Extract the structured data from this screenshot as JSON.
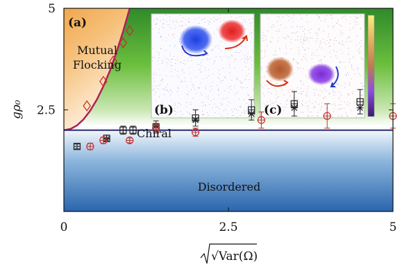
{
  "chart_data": {
    "type": "scatter",
    "xlabel": "√Var(Ω)",
    "ylabel": "gρ₀",
    "xlim": [
      0,
      5
    ],
    "ylim": [
      0,
      5
    ],
    "x_ticks": [
      "0",
      "2.5",
      "5"
    ],
    "y_ticks": [
      "2.5",
      "5"
    ],
    "panel_label": "(a)",
    "inset_labels": [
      "(b)",
      "(c)"
    ],
    "regions": [
      {
        "name": "Mutual Flocking",
        "lines": [
          "Mutual",
          "Flocking"
        ],
        "color": "#f09a1e"
      },
      {
        "name": "Chiral",
        "lines": [
          "Chiral"
        ],
        "color": "#3fa535"
      },
      {
        "name": "Disordered",
        "lines": [
          "Disordered"
        ],
        "color": "#2c6fb5"
      }
    ],
    "boundaries": {
      "horizontal_y": 2.0,
      "horizontal_color": "#2b2a6e",
      "curve": {
        "color": "#b0205a",
        "x": [
          0,
          0.1,
          0.2,
          0.3,
          0.4,
          0.5,
          0.6,
          0.7,
          0.8,
          0.9,
          1.0,
          1.1,
          1.2
        ],
        "y": [
          2.0,
          2.03,
          2.12,
          2.27,
          2.48,
          2.75,
          3.08,
          3.47,
          3.92,
          4.43,
          5.0,
          5.63,
          6.32
        ]
      }
    },
    "series": [
      {
        "name": "",
        "marker": "diamond",
        "color": "#c43030",
        "x": [
          0.35,
          0.6,
          0.75,
          0.9,
          1.0
        ],
        "y": [
          2.6,
          3.2,
          3.7,
          4.15,
          4.45
        ]
      },
      {
        "name": "",
        "marker": "square-plus",
        "color": "#222222",
        "x": [
          0.2,
          0.65,
          0.9,
          1.05,
          1.4,
          2.0,
          2.85,
          3.5,
          4.5
        ],
        "y": [
          1.6,
          1.8,
          2.0,
          2.0,
          2.08,
          2.3,
          2.5,
          2.65,
          2.7
        ],
        "err": [
          0.06,
          0.08,
          0.1,
          0.1,
          0.15,
          0.2,
          0.25,
          0.3,
          0.3
        ]
      },
      {
        "name": "",
        "marker": "star",
        "color": "#222222",
        "x": [
          0.65,
          1.4,
          2.0,
          2.85,
          3.5,
          4.5
        ],
        "y": [
          1.78,
          2.1,
          2.25,
          2.4,
          2.55,
          2.55
        ]
      },
      {
        "name": "",
        "marker": "circle-plus",
        "color": "#c43030",
        "x": [
          0.4,
          0.6,
          1.0,
          1.4,
          2.0,
          3.0,
          4.0,
          5.0
        ],
        "y": [
          1.6,
          1.75,
          1.75,
          2.05,
          1.95,
          2.25,
          2.35,
          2.35
        ],
        "err": [
          0.08,
          0.08,
          0.06,
          0.12,
          0.1,
          0.2,
          0.3,
          0.3
        ]
      }
    ]
  }
}
